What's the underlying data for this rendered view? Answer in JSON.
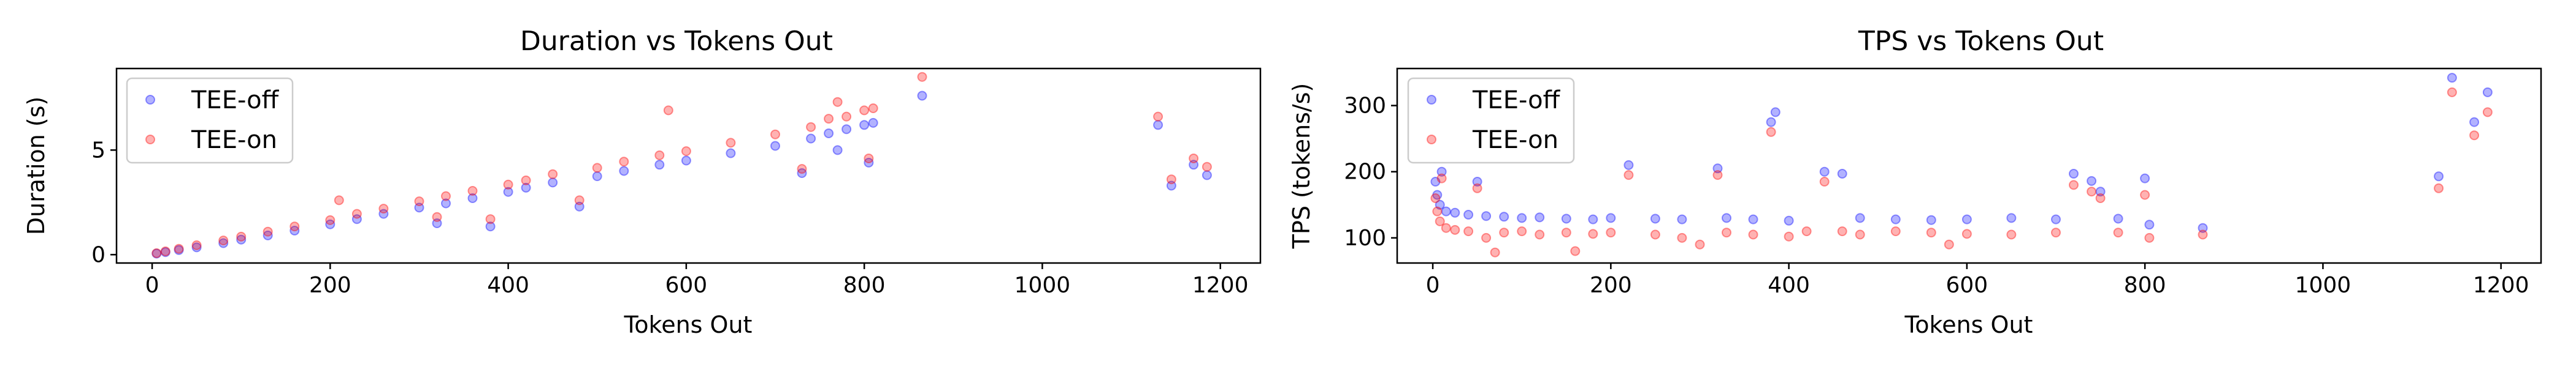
{
  "chart_data": [
    {
      "type": "scatter",
      "title": "Duration vs Tokens Out",
      "xlabel": "Tokens Out",
      "ylabel": "Duration (s)",
      "xlim": [
        -40,
        1245
      ],
      "ylim": [
        -0.4,
        8.9
      ],
      "xticks": [
        0,
        200,
        400,
        600,
        800,
        1000,
        1200
      ],
      "yticks": [
        0,
        5
      ],
      "legend_position": "top-left",
      "series": [
        {
          "name": "TEE-off",
          "color": "#0000ff",
          "points": [
            [
              5,
              0.05
            ],
            [
              15,
              0.12
            ],
            [
              30,
              0.22
            ],
            [
              50,
              0.35
            ],
            [
              80,
              0.55
            ],
            [
              100,
              0.72
            ],
            [
              130,
              0.92
            ],
            [
              160,
              1.15
            ],
            [
              200,
              1.45
            ],
            [
              230,
              1.7
            ],
            [
              260,
              1.95
            ],
            [
              300,
              2.25
            ],
            [
              320,
              1.5
            ],
            [
              330,
              2.45
            ],
            [
              360,
              2.7
            ],
            [
              380,
              1.35
            ],
            [
              400,
              3.0
            ],
            [
              420,
              3.2
            ],
            [
              450,
              3.45
            ],
            [
              480,
              2.3
            ],
            [
              500,
              3.75
            ],
            [
              530,
              4.0
            ],
            [
              570,
              4.3
            ],
            [
              600,
              4.5
            ],
            [
              650,
              4.85
            ],
            [
              700,
              5.2
            ],
            [
              730,
              3.9
            ],
            [
              740,
              5.55
            ],
            [
              760,
              5.8
            ],
            [
              770,
              5.0
            ],
            [
              780,
              6.0
            ],
            [
              800,
              6.2
            ],
            [
              805,
              4.4
            ],
            [
              810,
              6.3
            ],
            [
              865,
              7.6
            ],
            [
              1130,
              6.2
            ],
            [
              1145,
              3.3
            ],
            [
              1170,
              4.3
            ],
            [
              1185,
              3.8
            ]
          ]
        },
        {
          "name": "TEE-on",
          "color": "#ff0000",
          "points": [
            [
              5,
              0.07
            ],
            [
              15,
              0.16
            ],
            [
              30,
              0.28
            ],
            [
              50,
              0.45
            ],
            [
              80,
              0.68
            ],
            [
              100,
              0.86
            ],
            [
              130,
              1.1
            ],
            [
              160,
              1.35
            ],
            [
              200,
              1.65
            ],
            [
              210,
              2.6
            ],
            [
              230,
              1.95
            ],
            [
              260,
              2.2
            ],
            [
              300,
              2.55
            ],
            [
              320,
              1.8
            ],
            [
              330,
              2.8
            ],
            [
              360,
              3.05
            ],
            [
              380,
              1.7
            ],
            [
              400,
              3.35
            ],
            [
              420,
              3.55
            ],
            [
              450,
              3.85
            ],
            [
              480,
              2.6
            ],
            [
              500,
              4.15
            ],
            [
              530,
              4.45
            ],
            [
              570,
              4.75
            ],
            [
              580,
              6.9
            ],
            [
              600,
              4.95
            ],
            [
              650,
              5.35
            ],
            [
              700,
              5.75
            ],
            [
              730,
              4.1
            ],
            [
              740,
              6.1
            ],
            [
              760,
              6.5
            ],
            [
              770,
              7.3
            ],
            [
              780,
              6.6
            ],
            [
              800,
              6.9
            ],
            [
              805,
              4.6
            ],
            [
              810,
              7.0
            ],
            [
              865,
              8.5
            ],
            [
              1130,
              6.6
            ],
            [
              1145,
              3.6
            ],
            [
              1170,
              4.6
            ],
            [
              1185,
              4.2
            ]
          ]
        }
      ]
    },
    {
      "type": "scatter",
      "title": "TPS vs Tokens Out",
      "xlabel": "Tokens Out",
      "ylabel": "TPS (tokens/s)",
      "xlim": [
        -40,
        1245
      ],
      "ylim": [
        62,
        356
      ],
      "xticks": [
        0,
        200,
        400,
        600,
        800,
        1000,
        1200
      ],
      "yticks": [
        100,
        200,
        300
      ],
      "legend_position": "top-left",
      "series": [
        {
          "name": "TEE-off",
          "color": "#0000ff",
          "points": [
            [
              3,
              185
            ],
            [
              5,
              165
            ],
            [
              8,
              150
            ],
            [
              10,
              200
            ],
            [
              15,
              140
            ],
            [
              25,
              138
            ],
            [
              40,
              135
            ],
            [
              50,
              185
            ],
            [
              60,
              133
            ],
            [
              80,
              132
            ],
            [
              100,
              130
            ],
            [
              120,
              131
            ],
            [
              150,
              129
            ],
            [
              180,
              128
            ],
            [
              200,
              130
            ],
            [
              220,
              210
            ],
            [
              250,
              129
            ],
            [
              280,
              128
            ],
            [
              320,
              205
            ],
            [
              330,
              130
            ],
            [
              360,
              128
            ],
            [
              380,
              275
            ],
            [
              385,
              290
            ],
            [
              400,
              126
            ],
            [
              440,
              200
            ],
            [
              460,
              197
            ],
            [
              480,
              130
            ],
            [
              520,
              128
            ],
            [
              560,
              127
            ],
            [
              600,
              128
            ],
            [
              650,
              130
            ],
            [
              700,
              128
            ],
            [
              720,
              197
            ],
            [
              740,
              186
            ],
            [
              750,
              170
            ],
            [
              770,
              129
            ],
            [
              800,
              190
            ],
            [
              805,
              120
            ],
            [
              865,
              115
            ],
            [
              1130,
              193
            ],
            [
              1145,
              342
            ],
            [
              1170,
              275
            ],
            [
              1185,
              320
            ]
          ]
        },
        {
          "name": "TEE-on",
          "color": "#ff0000",
          "points": [
            [
              3,
              160
            ],
            [
              5,
              140
            ],
            [
              8,
              125
            ],
            [
              10,
              190
            ],
            [
              15,
              115
            ],
            [
              25,
              112
            ],
            [
              40,
              110
            ],
            [
              50,
              175
            ],
            [
              60,
              100
            ],
            [
              70,
              78
            ],
            [
              80,
              108
            ],
            [
              100,
              110
            ],
            [
              120,
              105
            ],
            [
              150,
              108
            ],
            [
              160,
              80
            ],
            [
              180,
              106
            ],
            [
              200,
              108
            ],
            [
              220,
              195
            ],
            [
              250,
              105
            ],
            [
              280,
              100
            ],
            [
              300,
              90
            ],
            [
              320,
              195
            ],
            [
              330,
              108
            ],
            [
              360,
              105
            ],
            [
              380,
              260
            ],
            [
              400,
              102
            ],
            [
              420,
              110
            ],
            [
              440,
              185
            ],
            [
              460,
              110
            ],
            [
              480,
              105
            ],
            [
              520,
              110
            ],
            [
              560,
              108
            ],
            [
              580,
              90
            ],
            [
              600,
              106
            ],
            [
              650,
              105
            ],
            [
              700,
              108
            ],
            [
              720,
              180
            ],
            [
              740,
              170
            ],
            [
              750,
              160
            ],
            [
              770,
              108
            ],
            [
              800,
              165
            ],
            [
              805,
              100
            ],
            [
              865,
              105
            ],
            [
              1130,
              175
            ],
            [
              1145,
              320
            ],
            [
              1170,
              255
            ],
            [
              1185,
              290
            ]
          ]
        }
      ]
    }
  ]
}
